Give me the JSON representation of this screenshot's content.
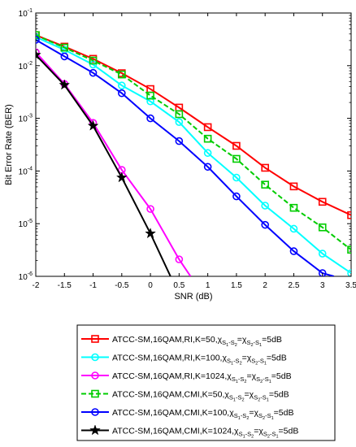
{
  "chart_data": {
    "type": "line",
    "title": "",
    "xlabel": "SNR (dB)",
    "ylabel": "Bit Error Rate (BER)",
    "xlim": [
      -2,
      3.5
    ],
    "ylim": [
      1e-06,
      0.1
    ],
    "yscale": "log",
    "grid": false,
    "legend_position": "below",
    "x_ticks": [
      "-2",
      "-1.5",
      "-1",
      "-0.5",
      "0",
      "0.5",
      "1",
      "1.5",
      "2",
      "2.5",
      "3",
      "3.5"
    ],
    "y_ticks": [
      {
        "base": "10",
        "exp": "-1"
      },
      {
        "base": "10",
        "exp": "-2"
      },
      {
        "base": "10",
        "exp": "-3"
      },
      {
        "base": "10",
        "exp": "-4"
      },
      {
        "base": "10",
        "exp": "-5"
      },
      {
        "base": "10",
        "exp": "-6"
      }
    ],
    "series": [
      {
        "label_main": "ATCC-SM,16QAM,RI,K=50,",
        "label_tail": "=5dB",
        "color": "#ff0000",
        "marker": "square",
        "dash": "solid",
        "x": [
          -2,
          -1.5,
          -1,
          -0.5,
          0,
          0.5,
          1,
          1.5,
          2,
          2.5,
          3,
          3.5
        ],
        "y": [
          0.038,
          0.023,
          0.0135,
          0.0072,
          0.0036,
          0.0016,
          0.00068,
          0.0003,
          0.000115,
          5.1e-05,
          2.6e-05,
          1.45e-05
        ]
      },
      {
        "label_main": "ATCC-SM,16QAM,RI,K=100,",
        "label_tail": "=5dB",
        "color": "#00ffff",
        "marker": "circle",
        "dash": "solid",
        "x": [
          -2,
          -1.5,
          -1,
          -0.5,
          0,
          0.5,
          1,
          1.5,
          2,
          2.5,
          3,
          3.5
        ],
        "y": [
          0.035,
          0.02,
          0.0105,
          0.0042,
          0.0021,
          0.00085,
          0.00022,
          7.5e-05,
          2.2e-05,
          8e-06,
          2.7e-06,
          1.15e-06
        ]
      },
      {
        "label_main": "ATCC-SM,16QAM,RI,K=1024,",
        "label_tail": "=5dB",
        "color": "#ff00ff",
        "marker": "circle",
        "dash": "solid",
        "x": [
          -2,
          -1.5,
          -1,
          -0.5,
          0,
          0.5,
          0.7
        ],
        "y": [
          0.018,
          0.0045,
          0.00082,
          0.000105,
          1.9e-05,
          2.1e-06,
          1e-06
        ]
      },
      {
        "label_main": "ATCC-SM,16QAM,CMI,K=50,",
        "label_tail": "=5dB",
        "color": "#00cc00",
        "marker": "square",
        "dash": "dashed",
        "x": [
          -2,
          -1.5,
          -1,
          -0.5,
          0,
          0.5,
          1,
          1.5,
          2,
          2.5,
          3,
          3.5
        ],
        "y": [
          0.038,
          0.022,
          0.0125,
          0.0068,
          0.0027,
          0.0012,
          0.00041,
          0.00017,
          5.5e-05,
          2e-05,
          8.5e-06,
          3.2e-06
        ]
      },
      {
        "label_main": "ATCC-SM,16QAM,CMI,K=100,",
        "label_tail": "=5dB",
        "color": "#0000ff",
        "marker": "circle",
        "dash": "solid",
        "x": [
          -2,
          -1.5,
          -1,
          -0.5,
          0,
          0.5,
          1,
          1.5,
          2,
          2.5,
          3,
          3.2
        ],
        "y": [
          0.031,
          0.015,
          0.0073,
          0.003,
          0.001,
          0.00037,
          0.00012,
          3.3e-05,
          9.5e-06,
          3e-06,
          1.15e-06,
          1e-06
        ]
      },
      {
        "label_main": "ATCC-SM,16QAM,CMI,K=1024,",
        "label_tail": "=5dB",
        "color": "#000000",
        "marker": "star",
        "dash": "solid",
        "x": [
          -2,
          -1.5,
          -1,
          -0.5,
          0,
          0.35
        ],
        "y": [
          0.016,
          0.0043,
          0.00072,
          7.5e-05,
          6.5e-06,
          1e-06
        ]
      }
    ]
  }
}
